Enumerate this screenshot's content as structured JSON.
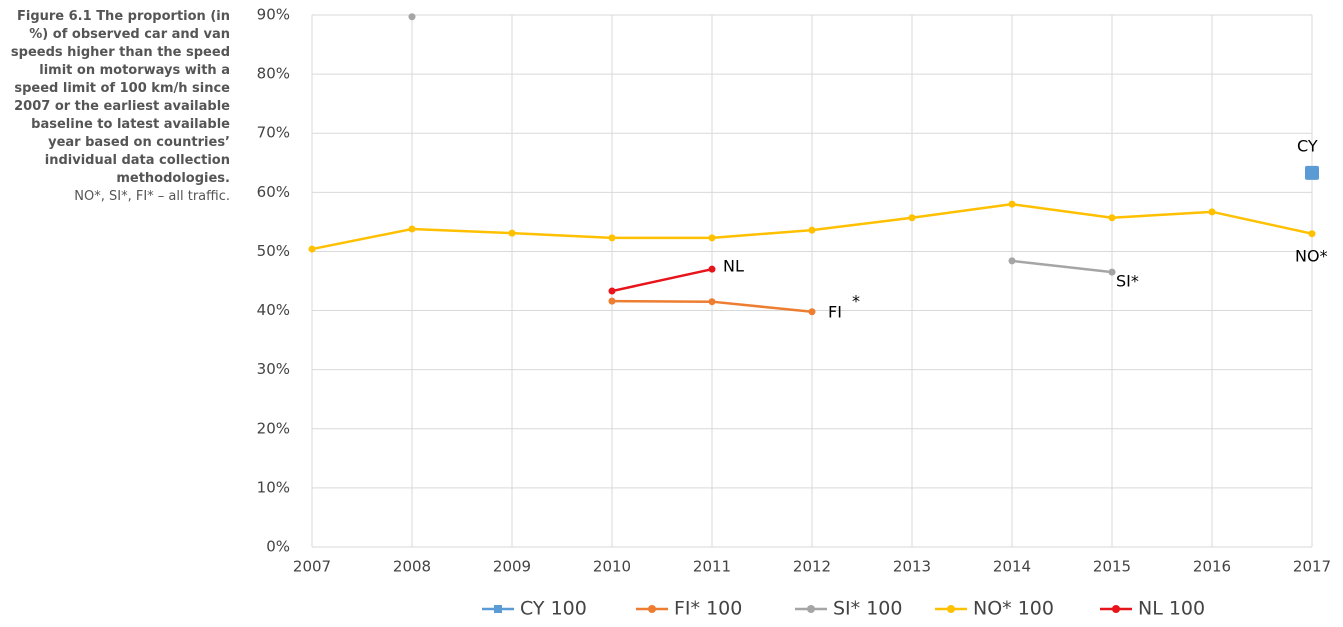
{
  "chart_data": {
    "type": "line",
    "title": "Figure 6.1 The proportion (in %) of observed car and van speeds higher than the speed limit on motorways with a speed limit of 100 km/h since 2007 or the earliest available baseline to latest available year based on countries’ individual data collection methodologies.",
    "subtitle": "NO*, SI*, FI* – all traffic.",
    "x": [
      2007,
      2008,
      2009,
      2010,
      2011,
      2012,
      2013,
      2014,
      2015,
      2016,
      2017
    ],
    "xlim": [
      2007,
      2017
    ],
    "xticks": [
      2007,
      2008,
      2009,
      2010,
      2011,
      2012,
      2013,
      2014,
      2015,
      2016,
      2017
    ],
    "ylim": [
      0,
      90
    ],
    "yticks": [
      {
        "value": 0,
        "label": "0%"
      },
      {
        "value": 10,
        "label": "10%"
      },
      {
        "value": 20,
        "label": "20%"
      },
      {
        "value": 30,
        "label": "30%"
      },
      {
        "value": 40,
        "label": "40%"
      },
      {
        "value": 50,
        "label": "50%"
      },
      {
        "value": 60,
        "label": "60%"
      },
      {
        "value": 70,
        "label": "70%"
      },
      {
        "value": 80,
        "label": "80%"
      },
      {
        "value": 90,
        "label": "90%"
      }
    ],
    "grid": true,
    "legend": "bottom",
    "series": [
      {
        "name": "CY 100",
        "color": "#5b9bd5",
        "marker": "square",
        "values": [
          null,
          null,
          null,
          null,
          null,
          null,
          null,
          null,
          null,
          null,
          63.3
        ]
      },
      {
        "name": "FI* 100",
        "color": "#ed7d31",
        "marker": "circle",
        "values": [
          null,
          null,
          null,
          41.6,
          41.5,
          39.8,
          null,
          null,
          null,
          null,
          null
        ]
      },
      {
        "name": "SI* 100",
        "color": "#a5a5a5",
        "marker": "circle",
        "values": [
          null,
          89.7,
          null,
          null,
          null,
          null,
          null,
          48.4,
          46.5,
          null,
          null
        ]
      },
      {
        "name": "NO* 100",
        "color": "#ffc000",
        "marker": "circle",
        "values": [
          50.4,
          53.8,
          53.1,
          52.3,
          52.3,
          53.6,
          55.7,
          58.0,
          55.7,
          56.7,
          53.0
        ]
      },
      {
        "name": "NL 100",
        "color": "#e8141b",
        "marker": "circle",
        "values": [
          null,
          null,
          null,
          43.3,
          47.0,
          null,
          null,
          null,
          null,
          null,
          null
        ]
      }
    ],
    "annotations": [
      "CY",
      "FI",
      "*",
      "SI*",
      "NO*",
      "NL"
    ]
  }
}
